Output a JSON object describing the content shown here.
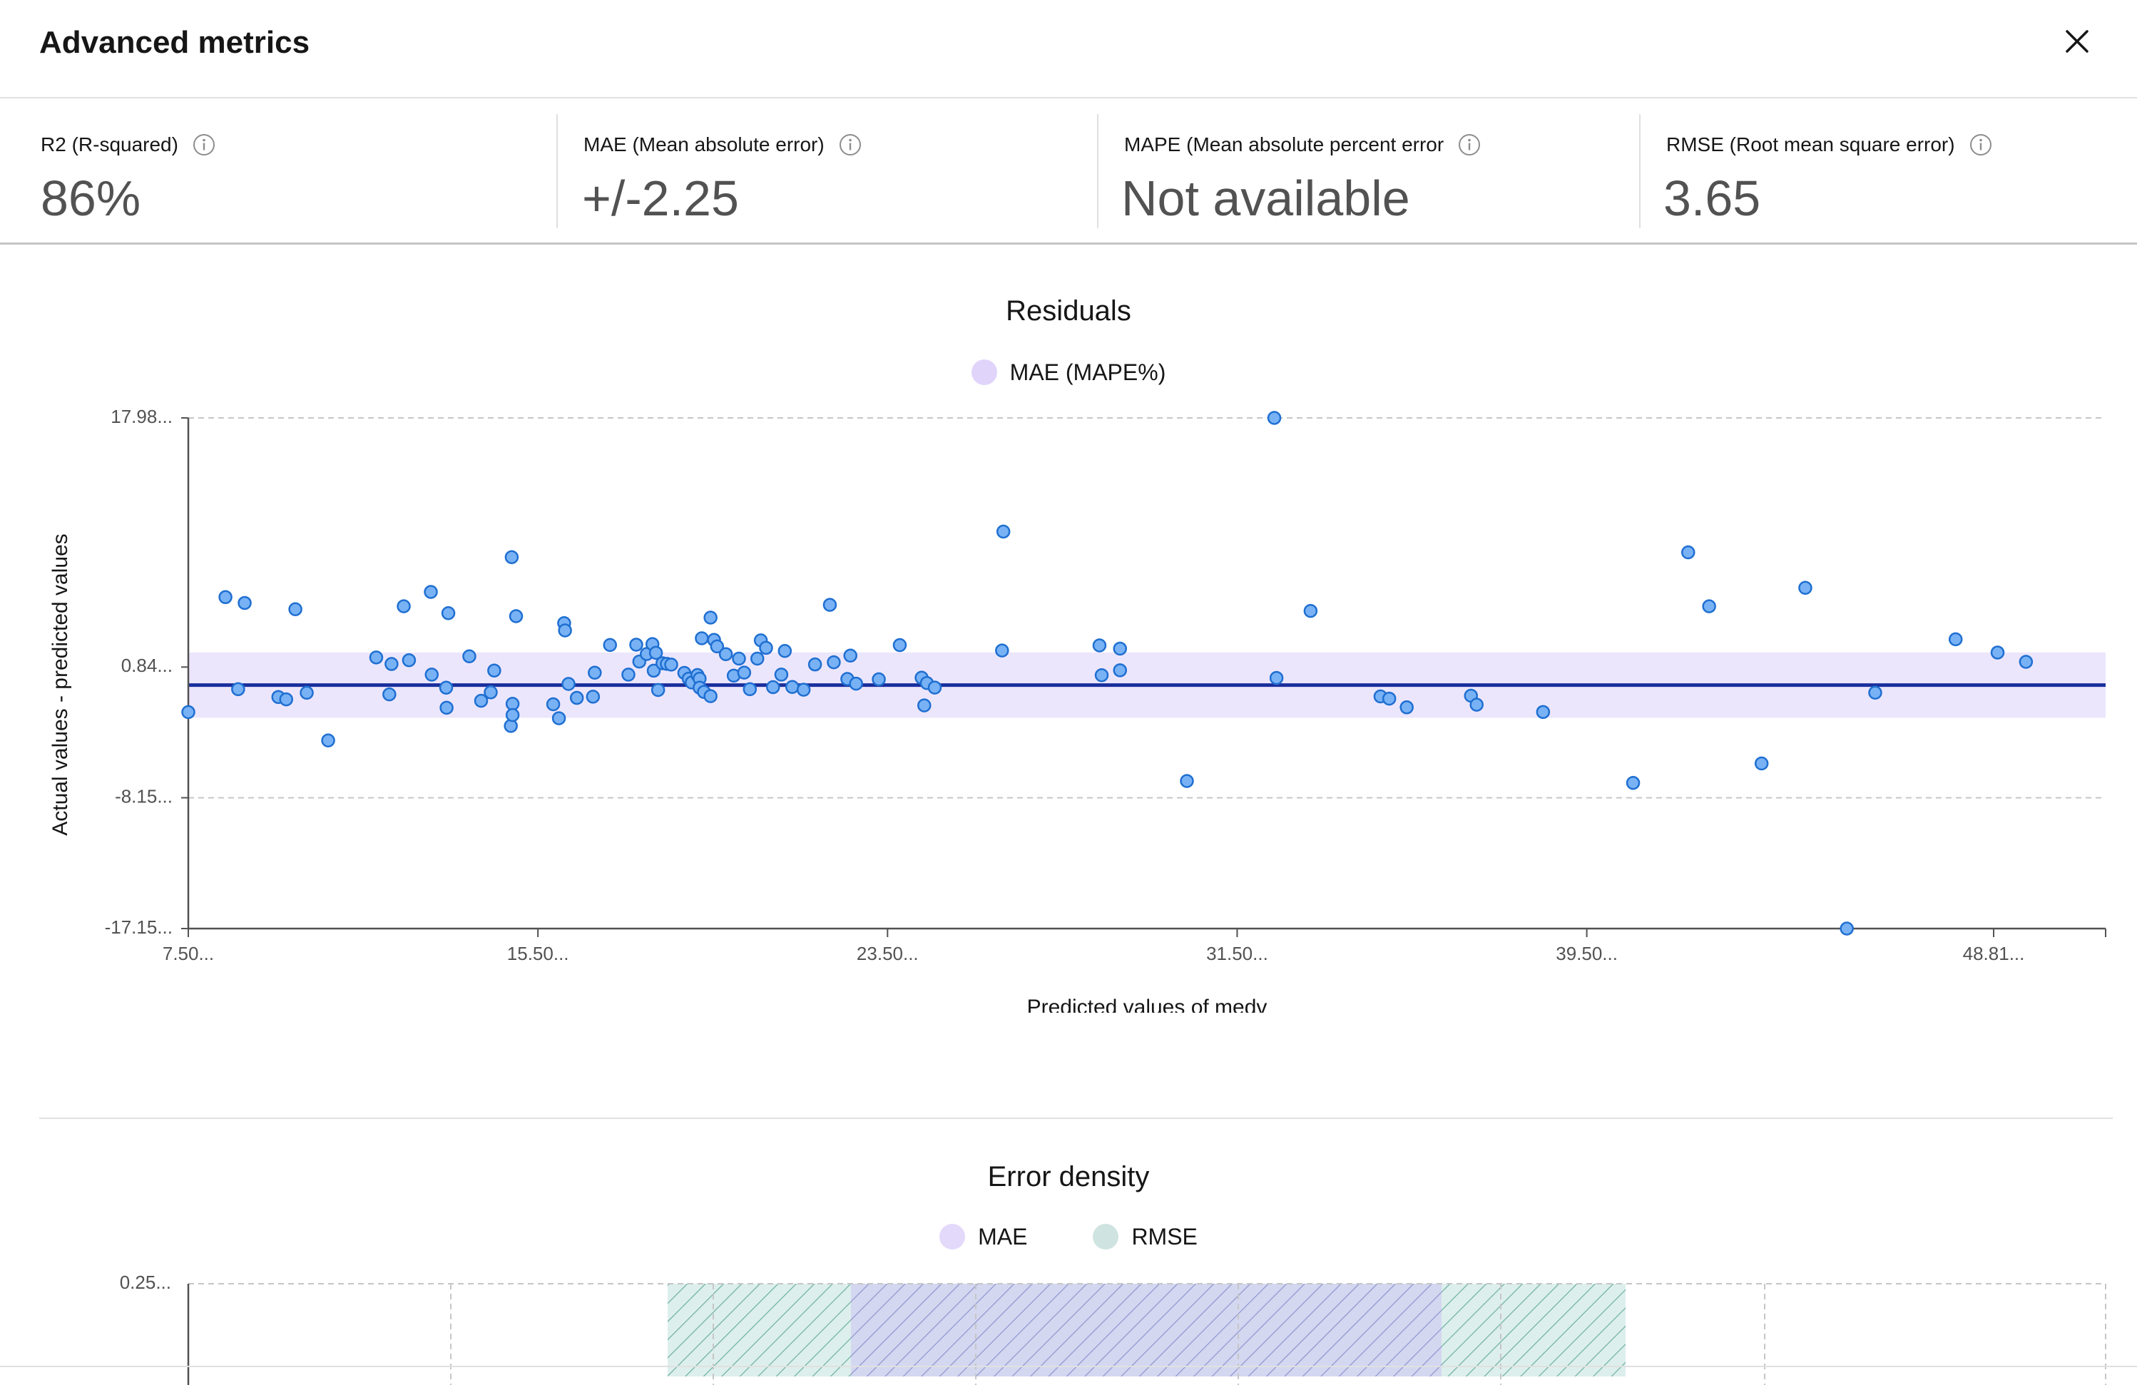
{
  "dialog": {
    "title": "Advanced metrics",
    "close_icon": "close-icon"
  },
  "metrics": [
    {
      "label": "R2 (R-squared)",
      "value": "86%",
      "icon": "info-icon"
    },
    {
      "label": "MAE (Mean absolute error)",
      "value": "+/-2.25",
      "icon": "info-icon"
    },
    {
      "label": "MAPE (Mean absolute percent error",
      "value": "Not available",
      "icon": "info-icon"
    },
    {
      "label": "RMSE (Root mean square error)",
      "value": "3.65",
      "icon": "info-icon"
    }
  ],
  "residuals": {
    "title": "Residuals",
    "legend": [
      {
        "label": "MAE (MAPE%)",
        "color": "#e0d4fb"
      }
    ],
    "xlabel": "Predicted values of medv",
    "ylabel": "Actual values - predicted values"
  },
  "error_density": {
    "title": "Error density",
    "legend": [
      {
        "label": "MAE",
        "color": "#e3d9fa"
      },
      {
        "label": "RMSE",
        "color": "#cfe4e1"
      }
    ],
    "y_tick": "0.25..."
  },
  "chart_data": [
    {
      "type": "scatter",
      "title": "Residuals",
      "xlabel": "Predicted values of medv",
      "ylabel": "Actual values - predicted values",
      "xlim": [
        7.5,
        48.81
      ],
      "ylim": [
        -17.15,
        17.98
      ],
      "x_ticks": [
        7.5,
        15.5,
        23.5,
        31.5,
        39.5,
        48.81
      ],
      "x_tick_labels": [
        "7.50...",
        "15.50...",
        "23.50...",
        "31.50...",
        "39.50...",
        "48.81..."
      ],
      "y_ticks": [
        17.98,
        0.84,
        -8.15,
        -17.15
      ],
      "y_tick_labels": [
        "17.98...",
        "0.84...",
        "-8.15...",
        "-17.15..."
      ],
      "mean_line": -0.4,
      "mae_band": [
        -2.65,
        1.85
      ],
      "legend": [
        "MAE (MAPE%)"
      ],
      "points": [
        [
          7.5,
          -2.26
        ],
        [
          8.35,
          5.65
        ],
        [
          8.64,
          -0.68
        ],
        [
          8.79,
          5.25
        ],
        [
          9.56,
          -1.22
        ],
        [
          9.74,
          -1.38
        ],
        [
          9.95,
          4.82
        ],
        [
          10.21,
          -0.93
        ],
        [
          10.7,
          -4.21
        ],
        [
          11.8,
          1.5
        ],
        [
          12.1,
          -1.04
        ],
        [
          12.15,
          1.05
        ],
        [
          12.43,
          5.02
        ],
        [
          12.55,
          1.31
        ],
        [
          13.05,
          6.01
        ],
        [
          13.07,
          0.32
        ],
        [
          13.4,
          -0.58
        ],
        [
          13.41,
          -1.96
        ],
        [
          13.45,
          4.55
        ],
        [
          13.93,
          1.58
        ],
        [
          14.2,
          -1.48
        ],
        [
          14.42,
          -0.9
        ],
        [
          14.5,
          0.6
        ],
        [
          14.88,
          -3.21
        ],
        [
          14.92,
          -1.69
        ],
        [
          14.92,
          -2.46
        ],
        [
          14.9,
          8.4
        ],
        [
          15.0,
          4.34
        ],
        [
          15.85,
          -1.72
        ],
        [
          15.98,
          -2.68
        ],
        [
          16.1,
          3.86
        ],
        [
          16.12,
          3.36
        ],
        [
          16.2,
          -0.32
        ],
        [
          16.39,
          -1.28
        ],
        [
          16.76,
          -1.2
        ],
        [
          16.8,
          0.45
        ],
        [
          17.15,
          2.36
        ],
        [
          17.57,
          0.32
        ],
        [
          17.75,
          2.38
        ],
        [
          17.82,
          1.22
        ],
        [
          17.99,
          1.74
        ],
        [
          18.12,
          2.42
        ],
        [
          18.15,
          0.59
        ],
        [
          18.2,
          1.82
        ],
        [
          18.25,
          -0.74
        ],
        [
          18.35,
          1.1
        ],
        [
          18.45,
          1.06
        ],
        [
          18.55,
          1.01
        ],
        [
          18.85,
          0.44
        ],
        [
          18.95,
          0.04
        ],
        [
          19.02,
          -0.22
        ],
        [
          19.15,
          0.29
        ],
        [
          19.2,
          0.04
        ],
        [
          19.2,
          -0.58
        ],
        [
          19.3,
          -0.87
        ],
        [
          19.45,
          -1.16
        ],
        [
          19.25,
          2.82
        ],
        [
          19.45,
          4.24
        ],
        [
          19.53,
          2.71
        ],
        [
          19.6,
          2.26
        ],
        [
          19.8,
          1.73
        ],
        [
          19.98,
          0.25
        ],
        [
          20.1,
          1.42
        ],
        [
          20.22,
          0.46
        ],
        [
          20.35,
          -0.68
        ],
        [
          20.52,
          1.42
        ],
        [
          20.6,
          2.68
        ],
        [
          20.72,
          2.16
        ],
        [
          20.88,
          -0.54
        ],
        [
          21.07,
          0.32
        ],
        [
          21.15,
          1.95
        ],
        [
          21.32,
          -0.53
        ],
        [
          21.58,
          -0.72
        ],
        [
          21.84,
          1.02
        ],
        [
          22.18,
          5.12
        ],
        [
          22.27,
          1.17
        ],
        [
          22.58,
          0.02
        ],
        [
          22.65,
          1.63
        ],
        [
          22.78,
          -0.3
        ],
        [
          23.3,
          -0.0
        ],
        [
          23.78,
          2.35
        ],
        [
          24.28,
          0.11
        ],
        [
          24.34,
          -1.8
        ],
        [
          24.4,
          -0.26
        ],
        [
          24.58,
          -0.57
        ],
        [
          26.15,
          10.16
        ],
        [
          26.12,
          1.98
        ],
        [
          28.35,
          2.33
        ],
        [
          28.4,
          0.28
        ],
        [
          28.82,
          0.62
        ],
        [
          28.82,
          2.11
        ],
        [
          30.35,
          -7.0
        ],
        [
          32.35,
          17.98
        ],
        [
          32.4,
          0.09
        ],
        [
          33.18,
          4.7
        ],
        [
          34.78,
          -1.18
        ],
        [
          34.98,
          -1.33
        ],
        [
          35.38,
          -1.93
        ],
        [
          36.85,
          -1.13
        ],
        [
          36.98,
          -1.75
        ],
        [
          38.5,
          -2.25
        ],
        [
          40.56,
          -7.13
        ],
        [
          41.82,
          8.73
        ],
        [
          42.3,
          5.02
        ],
        [
          43.5,
          -5.79
        ],
        [
          44.5,
          6.29
        ],
        [
          45.45,
          -17.15
        ],
        [
          46.1,
          -0.92
        ],
        [
          47.94,
          2.75
        ],
        [
          48.9,
          1.84
        ],
        [
          49.55,
          1.2
        ]
      ]
    },
    {
      "type": "area",
      "title": "Error density",
      "legend": [
        "MAE",
        "RMSE"
      ],
      "y_ticks": [
        0.25
      ],
      "y_tick_labels": [
        "0.25..."
      ]
    }
  ]
}
